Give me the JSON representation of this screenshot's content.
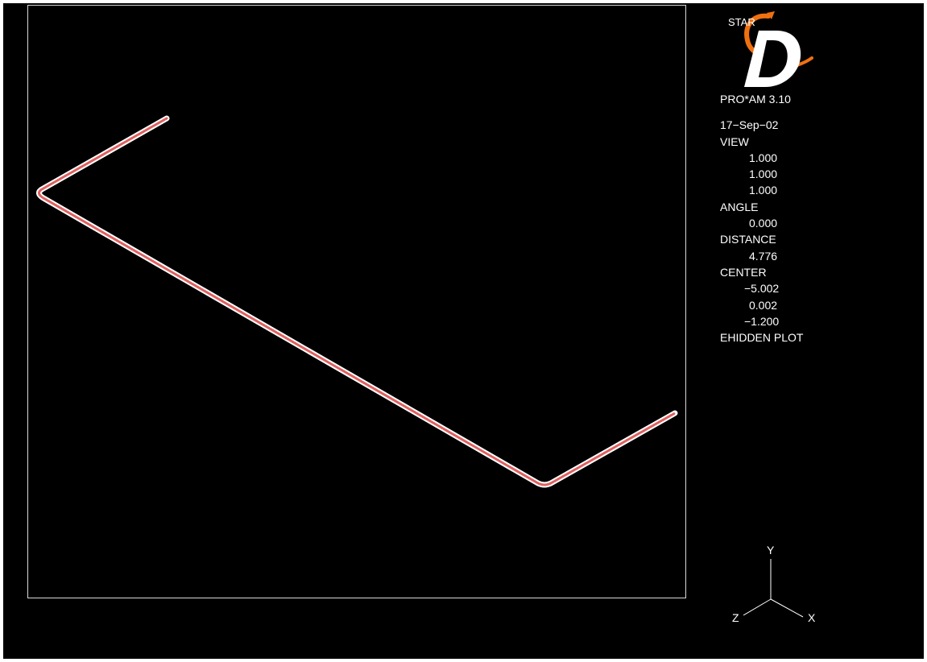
{
  "app": {
    "logo_text": "STAR",
    "logo_letter": "D",
    "product": "PRO*AM 3.10"
  },
  "info": {
    "date": "17−Sep−02",
    "view_label": "VIEW",
    "view_values": [
      "1.000",
      "1.000",
      "1.000"
    ],
    "angle_label": "ANGLE",
    "angle_value": "0.000",
    "distance_label": "DISTANCE",
    "distance_value": "4.776",
    "center_label": "CENTER",
    "center_values": [
      "−5.002",
      "0.002",
      "−1.200"
    ],
    "plot_mode": "EHIDDEN PLOT"
  },
  "axes": {
    "x_label": "X",
    "y_label": "Y",
    "z_label": "Z"
  },
  "colors": {
    "background": "#000000",
    "frame": "#d8d8d8",
    "pipe_outline": "#ffffff",
    "pipe_fill": "#e06060",
    "logo_orange": "#f07010",
    "text": "#ffffff"
  }
}
